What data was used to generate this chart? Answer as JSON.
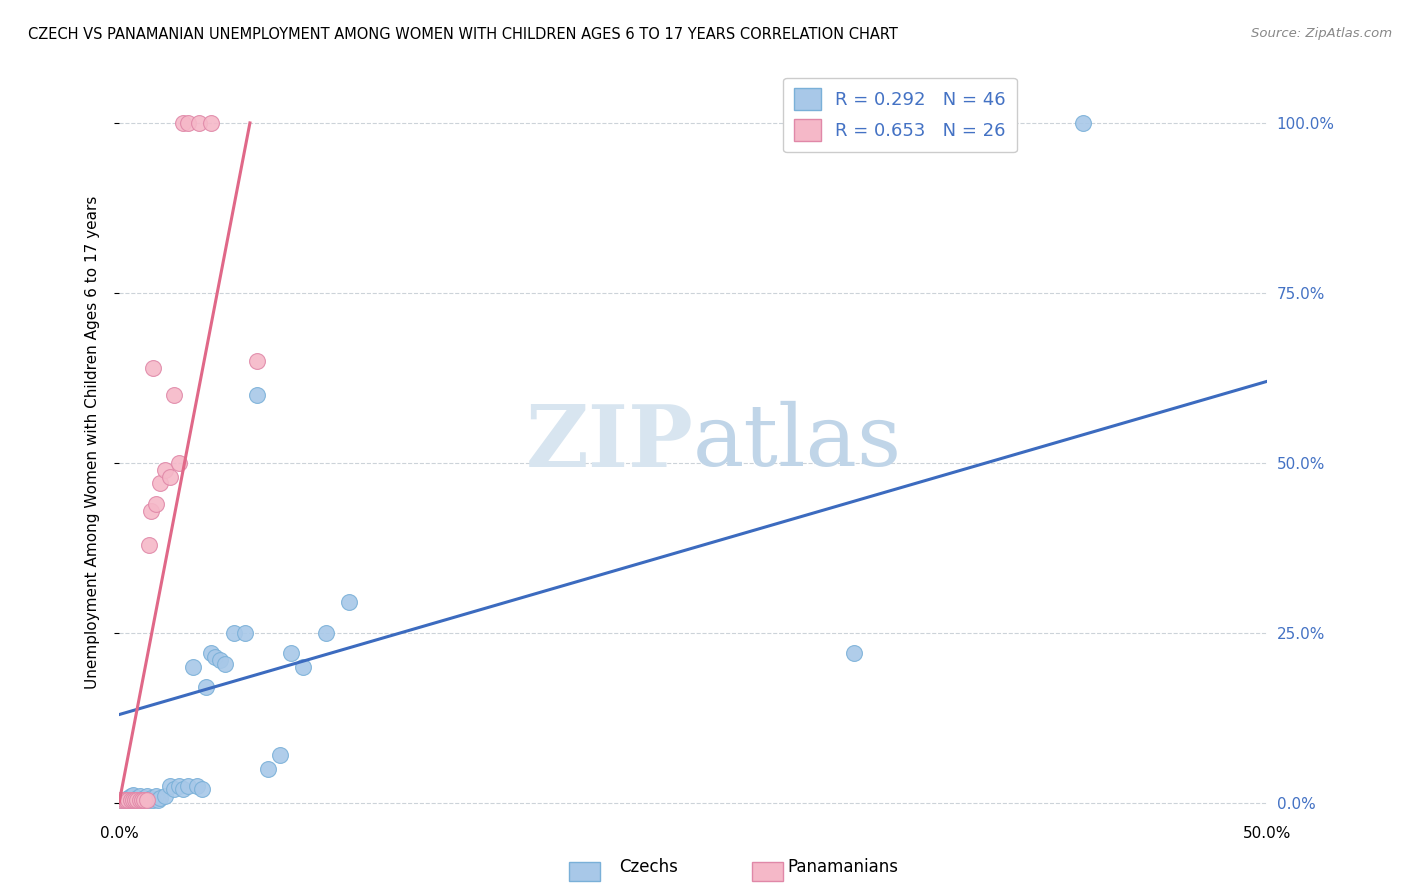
{
  "title": "CZECH VS PANAMANIAN UNEMPLOYMENT AMONG WOMEN WITH CHILDREN AGES 6 TO 17 YEARS CORRELATION CHART",
  "source": "Source: ZipAtlas.com",
  "ylabel": "Unemployment Among Women with Children Ages 6 to 17 years",
  "xlim": [
    0.0,
    0.5
  ],
  "ylim": [
    -0.02,
    1.08
  ],
  "xticks": [
    0.0,
    0.5
  ],
  "xticklabels": [
    "0.0%",
    "50.0%"
  ],
  "yticks_right": [
    0.0,
    0.25,
    0.5,
    0.75,
    1.0
  ],
  "yticklabels_right": [
    "0.0%",
    "25.0%",
    "50.0%",
    "75.0%",
    "100.0%"
  ],
  "legend_R1": "R = 0.292",
  "legend_N1": "N = 46",
  "legend_R2": "R = 0.653",
  "legend_N2": "N = 26",
  "czech_color": "#a8c8e8",
  "czech_edge_color": "#7ab0d8",
  "panama_color": "#f5b8c8",
  "panama_edge_color": "#e088a8",
  "watermark_zip": "ZIP",
  "watermark_atlas": "atlas",
  "watermark_color": "#d0dff0",
  "blue_line_color": "#3c6bbf",
  "pink_line_color": "#e06888",
  "czechs_label": "Czechs",
  "panamanians_label": "Panamanians",
  "czech_x": [
    0.001,
    0.002,
    0.003,
    0.004,
    0.005,
    0.005,
    0.006,
    0.006,
    0.007,
    0.008,
    0.009,
    0.01,
    0.011,
    0.012,
    0.013,
    0.014,
    0.015,
    0.016,
    0.017,
    0.018,
    0.02,
    0.022,
    0.024,
    0.026,
    0.028,
    0.03,
    0.032,
    0.034,
    0.036,
    0.038,
    0.04,
    0.042,
    0.044,
    0.046,
    0.05,
    0.055,
    0.06,
    0.065,
    0.07,
    0.075,
    0.08,
    0.09,
    0.1,
    0.32,
    0.38,
    0.42
  ],
  "czech_y": [
    0.005,
    0.005,
    0.005,
    0.008,
    0.005,
    0.01,
    0.007,
    0.012,
    0.005,
    0.007,
    0.01,
    0.005,
    0.007,
    0.01,
    0.005,
    0.007,
    0.005,
    0.01,
    0.005,
    0.007,
    0.01,
    0.025,
    0.02,
    0.025,
    0.02,
    0.025,
    0.2,
    0.025,
    0.02,
    0.17,
    0.22,
    0.215,
    0.21,
    0.205,
    0.25,
    0.25,
    0.6,
    0.05,
    0.07,
    0.22,
    0.2,
    0.25,
    0.295,
    0.22,
    1.0,
    1.0
  ],
  "panama_x": [
    0.001,
    0.002,
    0.003,
    0.004,
    0.005,
    0.006,
    0.007,
    0.008,
    0.009,
    0.01,
    0.011,
    0.012,
    0.013,
    0.014,
    0.015,
    0.016,
    0.018,
    0.02,
    0.022,
    0.024,
    0.026,
    0.028,
    0.03,
    0.035,
    0.04,
    0.06
  ],
  "panama_y": [
    0.005,
    0.005,
    0.005,
    0.005,
    0.005,
    0.005,
    0.005,
    0.005,
    0.005,
    0.005,
    0.005,
    0.005,
    0.38,
    0.43,
    0.64,
    0.44,
    0.47,
    0.49,
    0.48,
    0.6,
    0.5,
    1.0,
    1.0,
    1.0,
    1.0,
    0.65
  ],
  "blue_line_x": [
    0.0,
    0.5
  ],
  "blue_line_y": [
    0.13,
    0.62
  ],
  "pink_line_x": [
    0.0,
    0.057
  ],
  "pink_line_y": [
    0.0,
    1.0
  ]
}
